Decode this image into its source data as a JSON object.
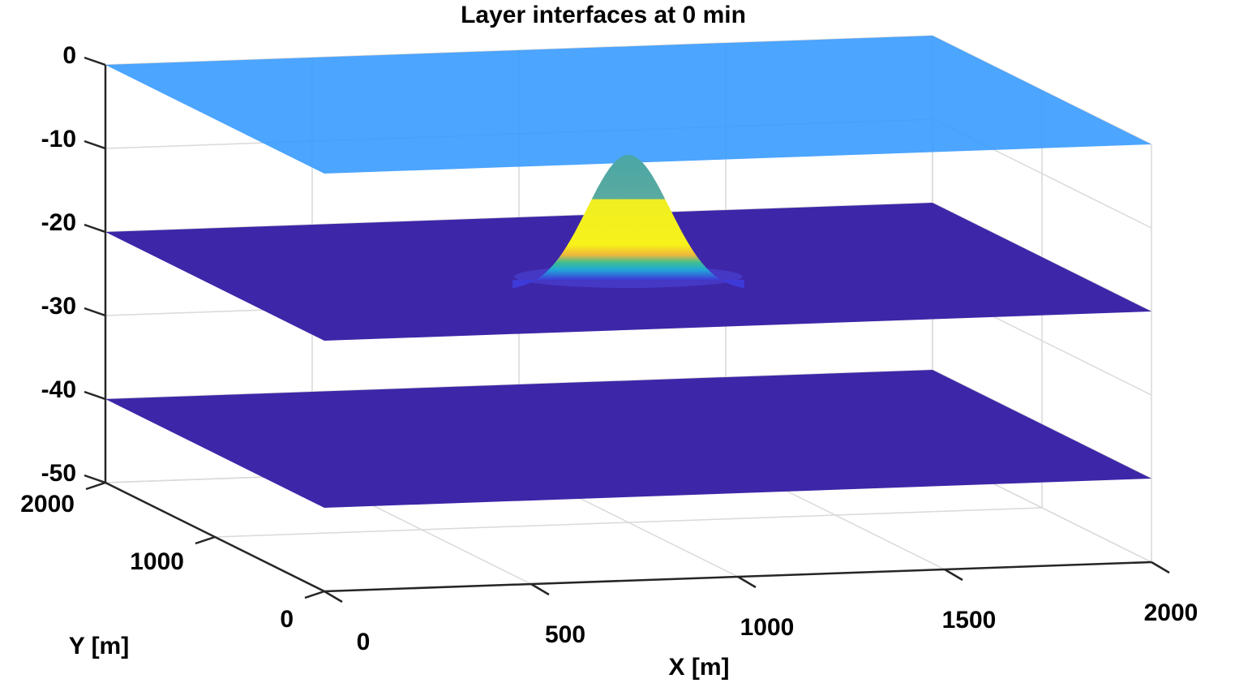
{
  "chart_data": {
    "type": "surface",
    "title": "Layer interfaces at 0 min",
    "xlabel": "X [m]",
    "ylabel": "Y [m]",
    "zlabel": "",
    "xlim": [
      0,
      2000
    ],
    "ylim": [
      0,
      2000
    ],
    "zlim": [
      -50,
      0
    ],
    "x_ticks": [
      0,
      500,
      1000,
      1500,
      2000
    ],
    "y_ticks": [
      0,
      1000,
      2000
    ],
    "z_ticks": [
      0,
      -10,
      -20,
      -30,
      -40,
      -50
    ],
    "x_tick_labels": [
      "0",
      "500",
      "1000",
      "1500",
      "2000"
    ],
    "y_tick_labels": [
      "0",
      "1000",
      "2000"
    ],
    "z_tick_labels": [
      "0",
      "-10",
      "-20",
      "-30",
      "-40",
      "-50"
    ],
    "grid": true,
    "view": "3d",
    "series": [
      {
        "depth": 0,
        "color": "#3399ff",
        "opacity": 0.88
      },
      {
        "depth": -20,
        "color": "#3e26a8",
        "opacity": 1,
        "bump": {
          "center_x": 1000,
          "center_y": 1000,
          "peak_depth": -6,
          "width": 200
        }
      },
      {
        "depth": -40,
        "color": "#3e26a8",
        "opacity": 1
      }
    ]
  }
}
